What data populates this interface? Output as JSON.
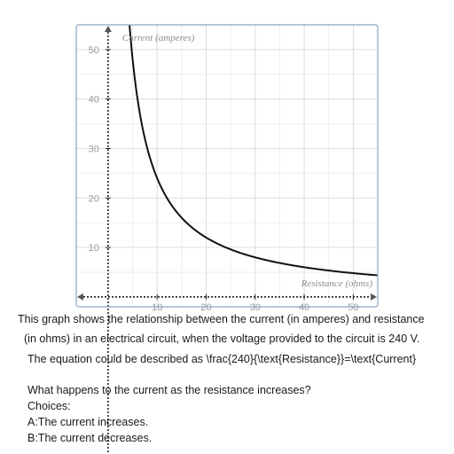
{
  "chart_data": {
    "type": "line",
    "xlabel": "Resistance (ohms)",
    "ylabel": "Current (amperes)",
    "xlim": [
      -6.5,
      55
    ],
    "ylim": [
      -2,
      55
    ],
    "x_ticks": [
      10,
      20,
      30,
      40,
      50
    ],
    "y_ticks": [
      10,
      20,
      30,
      40,
      50
    ],
    "grid": true,
    "function": "240/x",
    "series": [
      {
        "x": [
          4.6,
          5,
          6,
          8,
          10,
          12,
          15,
          20,
          24,
          30,
          40,
          48,
          55
        ],
        "y": [
          52.2,
          48,
          40,
          30,
          24,
          20,
          16,
          12,
          10,
          8,
          6,
          5,
          4.36
        ]
      }
    ],
    "colors": {
      "curve": "#111111",
      "grid": "#dddddd",
      "frame": "#8aa5c4",
      "axis": "#222222"
    }
  },
  "text": {
    "line1": "This graph shows the relationship between the current (in amperes) and resistance",
    "line2": "(in ohms) in an electrical circuit, when the voltage provided to the circuit is 240 V.",
    "line3": "The equation could be described as \\frac{240}{\\text{Resistance}}=\\text{Current}",
    "line4": "What happens to the current as the resistance increases?",
    "line5": "Choices:",
    "line6": "A:The current increases.",
    "line7": "B:The current decreases."
  }
}
